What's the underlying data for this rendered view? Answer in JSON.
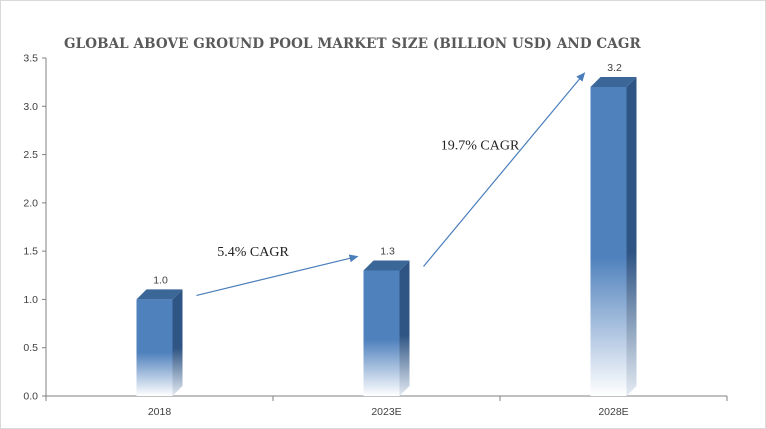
{
  "chart_data": {
    "type": "bar",
    "title": "GLOBAL ABOVE GROUND POOL MARKET SIZE (BILLION USD) AND CAGR",
    "categories": [
      "2018",
      "2023E",
      "2028E"
    ],
    "values": [
      1.0,
      1.3,
      3.2
    ],
    "data_labels": [
      "1.0",
      "1.3",
      "3.2"
    ],
    "y_ticks": [
      "0.0",
      "0.5",
      "1.0",
      "1.5",
      "2.0",
      "2.5",
      "3.0",
      "3.5"
    ],
    "ylim": [
      0,
      3.5
    ],
    "grid": false,
    "legend": "none",
    "annotations": [
      {
        "text": "5.4% CAGR",
        "from": "2018",
        "to": "2023E"
      },
      {
        "text": "19.7% CAGR",
        "from": "2023E",
        "to": "2028E"
      }
    ],
    "colors": {
      "bar_front": "#4f81bd",
      "bar_side": "#2f5584",
      "bar_top": "#3b6698",
      "arrow": "#4a7ebb",
      "axis": "#808080"
    }
  }
}
